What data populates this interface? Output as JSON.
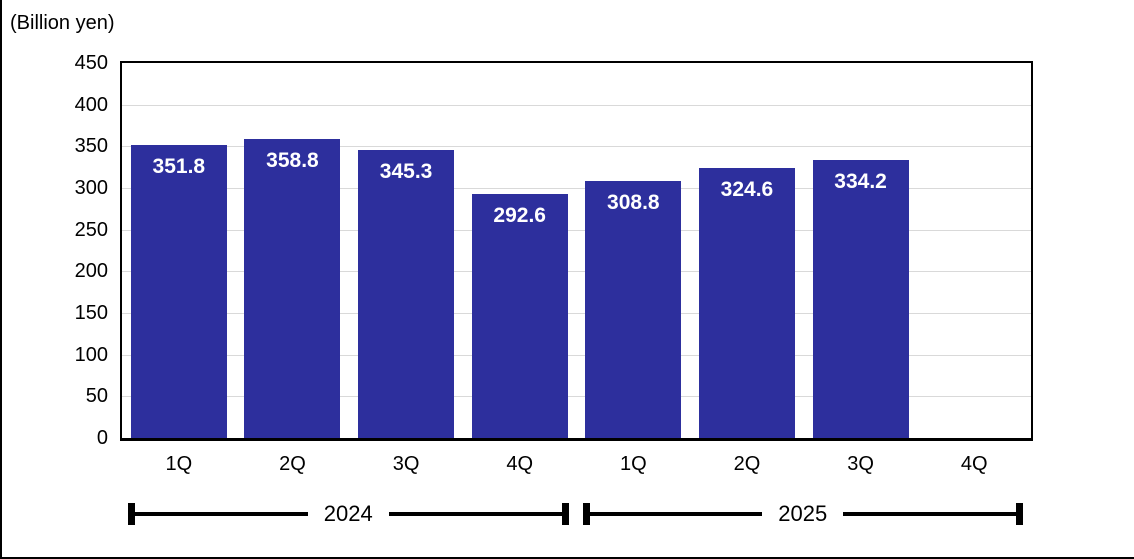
{
  "unit_label": "(Billion yen)",
  "chart_data": {
    "type": "bar",
    "title": "",
    "xlabel": "",
    "ylabel": "(Billion yen)",
    "ylim": [
      0,
      450
    ],
    "ytick_step": 50,
    "yticks": [
      450,
      400,
      350,
      300,
      250,
      200,
      150,
      100,
      50,
      0
    ],
    "grid": true,
    "legend": "none",
    "bar_color": "#2d2f9d",
    "gridline_color": "#d9d9d9",
    "value_label_color": "#ffffff",
    "categories": [
      "1Q",
      "2Q",
      "3Q",
      "4Q",
      "1Q",
      "2Q",
      "3Q",
      "4Q"
    ],
    "groups": [
      {
        "year": "2024",
        "quarters": [
          "1Q",
          "2Q",
          "3Q",
          "4Q"
        ],
        "values": [
          351.8,
          358.8,
          345.3,
          292.6
        ]
      },
      {
        "year": "2025",
        "quarters": [
          "1Q",
          "2Q",
          "3Q",
          "4Q"
        ],
        "values": [
          308.8,
          324.6,
          334.2,
          null
        ]
      }
    ],
    "value_labels": [
      "351.8",
      "358.8",
      "345.3",
      "292.6",
      "308.8",
      "324.6",
      "334.2"
    ]
  }
}
